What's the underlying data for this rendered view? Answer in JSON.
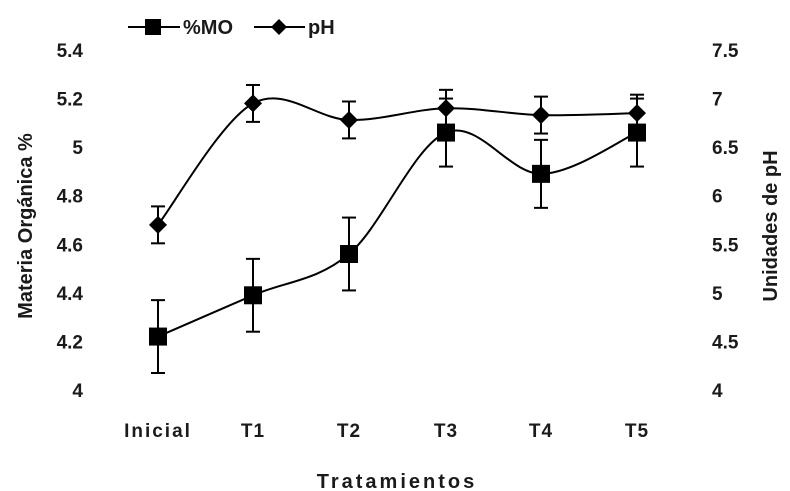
{
  "chart_data": {
    "type": "line",
    "categories": [
      "Inicial",
      "T1",
      "T2",
      "T3",
      "T4",
      "T5"
    ],
    "xlabel": "Tratamientos",
    "y_left": {
      "label": "Materia Orgánica %",
      "range": [
        4,
        5.4
      ],
      "ticks": [
        "4",
        "4.2",
        "4.4",
        "4.6",
        "4.8",
        "5",
        "5.2",
        "5.4"
      ]
    },
    "y_right": {
      "label": "Unidades de pH",
      "range": [
        4,
        7.5
      ],
      "ticks": [
        "4",
        "4.5",
        "5",
        "5.5",
        "6",
        "6.5",
        "7",
        "7.5"
      ]
    },
    "legend": {
      "position": "top-left",
      "entries": [
        "%MO",
        "pH"
      ]
    },
    "grid": false,
    "series": [
      {
        "name": "%MO",
        "axis": "left",
        "marker": "square",
        "color": "#000000",
        "values": [
          4.22,
          4.39,
          4.56,
          5.06,
          4.89,
          5.06
        ],
        "error": [
          0.15,
          0.15,
          0.15,
          0.14,
          0.14,
          0.14
        ]
      },
      {
        "name": "pH",
        "axis": "right",
        "marker": "diamond",
        "color": "#000000",
        "values": [
          5.7,
          6.95,
          6.78,
          6.9,
          6.83,
          6.85
        ],
        "error": [
          0.19,
          0.19,
          0.19,
          0.19,
          0.19,
          0.19
        ]
      }
    ]
  }
}
